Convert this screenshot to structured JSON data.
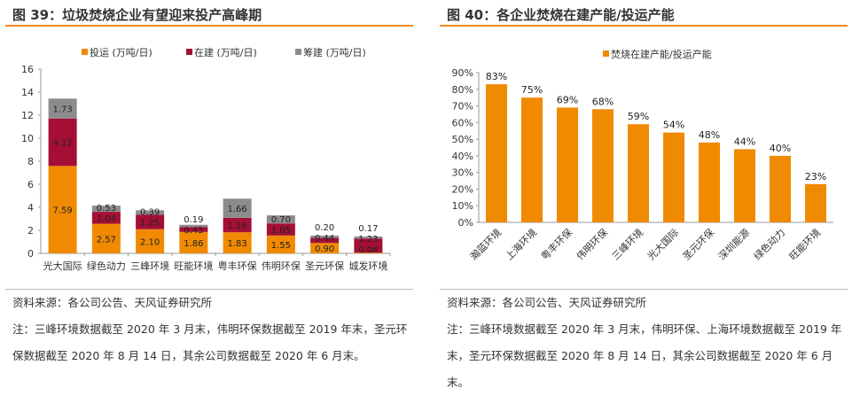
{
  "left": {
    "title": "图 39：垃圾焚烧企业有望迎来投产高峰期",
    "source": "资料来源：各公司公告、天风证券研究所",
    "note": "注：三峰环境数据截至 2020 年 3 月末，伟明环保数据截至 2019 年末，圣元环保数据截至 2020 年 8 月 14 日，其余公司数据截至 2020 年 6 月末。"
  },
  "right": {
    "title": "图 40：各企业焚烧在建产能/投运产能",
    "source": "资料来源：各公司公告、天风证券研究所",
    "note": "注：三峰环境数据截至 2020 年 3 月末，伟明环保、上海环境数据截至 2019 年末，圣元环保数据截至 2020 年 8 月 14 日，其余公司数据截至 2020 年 6 月末。"
  },
  "chart_data": [
    {
      "type": "bar",
      "stacked": true,
      "categories": [
        "光大国际",
        "绿色动力",
        "三峰环境",
        "旺能环境",
        "粤丰环保",
        "伟明环保",
        "圣元环保",
        "城发环境"
      ],
      "series": [
        {
          "name": "投运 (万吨/日)",
          "color": "#f08a00",
          "values": [
            7.59,
            2.57,
            2.1,
            1.86,
            1.83,
            1.55,
            0.9,
            0.06
          ],
          "labels": [
            "7.59",
            "2.57",
            "2.10",
            "1.86",
            "1.83",
            "1.55",
            "0.90",
            "0.06"
          ]
        },
        {
          "name": "在建 (万吨/日)",
          "color": "#a50f35",
          "values": [
            4.12,
            1.04,
            1.25,
            0.43,
            1.26,
            1.05,
            0.44,
            1.23
          ],
          "labels": [
            "4.12",
            "1.04",
            "1.25",
            "0.43",
            "1.26",
            "1.05",
            "0.44",
            "1.23"
          ]
        },
        {
          "name": "筹建 (万吨/日)",
          "color": "#8c8c8c",
          "values": [
            1.73,
            0.53,
            0.39,
            0.19,
            1.66,
            0.7,
            0.2,
            0.17
          ],
          "labels": [
            "1.73",
            "0.53",
            "0.39",
            "0.19",
            "1.66",
            "0.70",
            "0.20",
            "0.17"
          ]
        }
      ],
      "ylim": [
        0,
        16
      ],
      "yticks": [
        "0",
        "2",
        "4",
        "6",
        "8",
        "10",
        "12",
        "14",
        "16"
      ],
      "legend": "top"
    },
    {
      "type": "bar",
      "categories": [
        "瀚蓝环境",
        "上海环境",
        "粤丰环保",
        "伟明环保",
        "三峰环境",
        "光大国际",
        "圣元环保",
        "深圳能源",
        "绿色动力",
        "旺能环境"
      ],
      "series": [
        {
          "name": "焚烧在建产能/投运产能",
          "color": "#f08a00",
          "values": [
            83,
            75,
            69,
            68,
            59,
            54,
            48,
            44,
            40,
            23
          ],
          "labels": [
            "83%",
            "75%",
            "69%",
            "68%",
            "59%",
            "54%",
            "48%",
            "44%",
            "40%",
            "23%"
          ]
        }
      ],
      "ylim": [
        0,
        90
      ],
      "yticks": [
        "0%",
        "10%",
        "20%",
        "30%",
        "40%",
        "50%",
        "60%",
        "70%",
        "80%",
        "90%"
      ],
      "legend": "top-left"
    }
  ]
}
